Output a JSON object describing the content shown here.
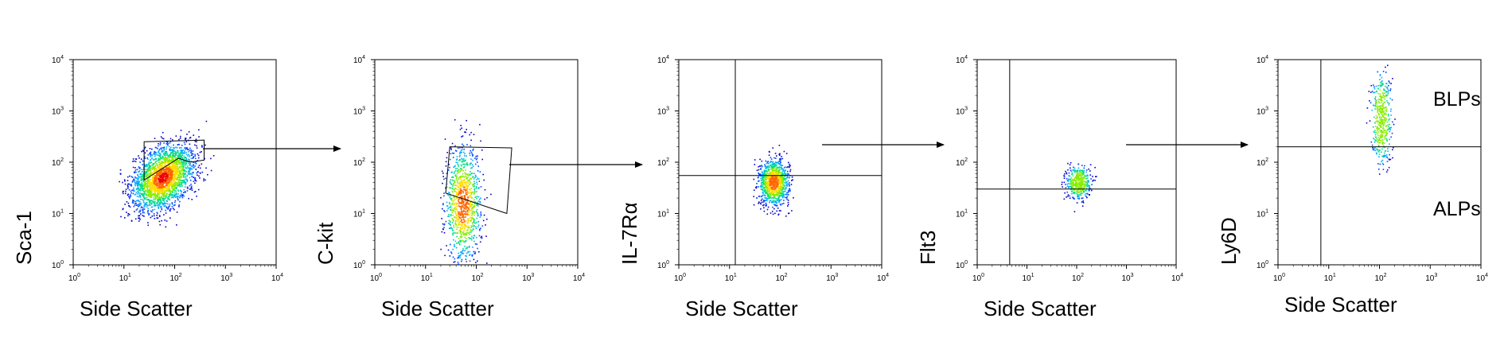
{
  "chart_data": [
    {
      "type": "scatter",
      "subtype": "flow-cytometry-density",
      "xlabel": "Side Scatter",
      "ylabel": "Sca-1",
      "x_scale": "log",
      "y_scale": "log",
      "xlim": [
        1,
        10000
      ],
      "ylim": [
        1,
        10000
      ],
      "x_ticks": [
        "10",
        "10",
        "10",
        "10",
        "10"
      ],
      "x_tick_exps": [
        "0",
        "1",
        "2",
        "3",
        "4"
      ],
      "y_ticks": [
        "10",
        "10",
        "10",
        "10",
        "10"
      ],
      "y_tick_exps": [
        "0",
        "1",
        "2",
        "3",
        "4"
      ],
      "population": {
        "center": [
          60,
          50
        ],
        "spread_log": [
          0.28,
          0.32
        ],
        "density": "high",
        "range_x": [
          8,
          600
        ],
        "range_y": [
          4,
          3000
        ]
      },
      "gate": {
        "shape": "polygon",
        "points": [
          [
            25,
            250
          ],
          [
            380,
            270
          ],
          [
            380,
            110
          ],
          [
            200,
            100
          ],
          [
            120,
            120
          ],
          [
            25,
            45
          ]
        ]
      },
      "arrow_to_next": true
    },
    {
      "type": "scatter",
      "subtype": "flow-cytometry-density",
      "xlabel": "Side Scatter",
      "ylabel": "C-kit",
      "x_scale": "log",
      "y_scale": "log",
      "xlim": [
        1,
        10000
      ],
      "ylim": [
        1,
        10000
      ],
      "x_ticks": [
        "10",
        "10",
        "10",
        "10",
        "10"
      ],
      "x_tick_exps": [
        "0",
        "1",
        "2",
        "3",
        "4"
      ],
      "y_ticks": [
        "10",
        "10",
        "10",
        "10",
        "10"
      ],
      "y_tick_exps": [
        "0",
        "1",
        "2",
        "3",
        "4"
      ],
      "population": {
        "center": [
          55,
          15
        ],
        "spread_log": [
          0.18,
          0.55
        ],
        "density": "medium",
        "range_x": [
          20,
          250
        ],
        "range_y": [
          1,
          1000
        ]
      },
      "gate": {
        "shape": "polygon",
        "points": [
          [
            30,
            200
          ],
          [
            500,
            190
          ],
          [
            400,
            10
          ],
          [
            25,
            25
          ]
        ]
      },
      "arrow_to_next": true
    },
    {
      "type": "scatter",
      "subtype": "flow-cytometry-density",
      "xlabel": "Side Scatter",
      "ylabel": "IL-7Rα",
      "x_scale": "log",
      "y_scale": "log",
      "xlim": [
        1,
        10000
      ],
      "ylim": [
        1,
        10000
      ],
      "x_ticks": [
        "10",
        "10",
        "10",
        "10",
        "10"
      ],
      "x_tick_exps": [
        "0",
        "1",
        "2",
        "3",
        "4"
      ],
      "y_ticks": [
        "10",
        "10",
        "10",
        "10",
        "10"
      ],
      "y_tick_exps": [
        "0",
        "1",
        "2",
        "3",
        "4"
      ],
      "population": {
        "center": [
          75,
          40
        ],
        "spread_log": [
          0.15,
          0.22
        ],
        "density": "medium",
        "range_x": [
          30,
          200
        ],
        "range_y": [
          8,
          250
        ]
      },
      "quadrant": {
        "x": 13,
        "y": 55
      },
      "arrow_to_next": true
    },
    {
      "type": "scatter",
      "subtype": "flow-cytometry-density",
      "xlabel": "Side Scatter",
      "ylabel": "Flt3",
      "x_scale": "log",
      "y_scale": "log",
      "xlim": [
        1,
        10000
      ],
      "ylim": [
        1,
        10000
      ],
      "x_ticks": [
        "10",
        "10",
        "10",
        "10",
        "10"
      ],
      "x_tick_exps": [
        "0",
        "1",
        "2",
        "3",
        "4"
      ],
      "y_ticks": [
        "10",
        "10",
        "10",
        "10",
        "10"
      ],
      "y_tick_exps": [
        "0",
        "1",
        "2",
        "3",
        "4"
      ],
      "population": {
        "center": [
          110,
          40
        ],
        "spread_log": [
          0.12,
          0.16
        ],
        "density": "low",
        "range_x": [
          50,
          250
        ],
        "range_y": [
          10,
          120
        ]
      },
      "quadrant": {
        "x": 4.5,
        "y": 30
      },
      "arrow_to_next": true
    },
    {
      "type": "scatter",
      "subtype": "flow-cytometry-density",
      "xlabel": "Side Scatter",
      "ylabel": "Ly6D",
      "x_scale": "log",
      "y_scale": "log",
      "xlim": [
        1,
        10000
      ],
      "ylim": [
        1,
        10000
      ],
      "x_ticks": [
        "10",
        "10",
        "10",
        "10",
        "10"
      ],
      "x_tick_exps": [
        "0",
        "1",
        "2",
        "3",
        "4"
      ],
      "y_ticks": [
        "10",
        "10",
        "10",
        "10",
        "10"
      ],
      "y_tick_exps": [
        "0",
        "1",
        "2",
        "3",
        "4"
      ],
      "population": {
        "center": [
          110,
          700
        ],
        "spread_log": [
          0.1,
          0.45
        ],
        "density": "low",
        "range_x": [
          50,
          220
        ],
        "range_y": [
          50,
          8000
        ]
      },
      "quadrant": {
        "x": 7,
        "y": 200
      },
      "region_labels": {
        "upper": "BLPs",
        "lower": "ALPs"
      },
      "arrow_to_next": false
    }
  ],
  "colors": {
    "axis": "#000000",
    "density_scale": [
      "#0000cc",
      "#0044ff",
      "#00aaff",
      "#00dd88",
      "#88ee00",
      "#ffdd00",
      "#ff6600",
      "#ee0000"
    ]
  }
}
